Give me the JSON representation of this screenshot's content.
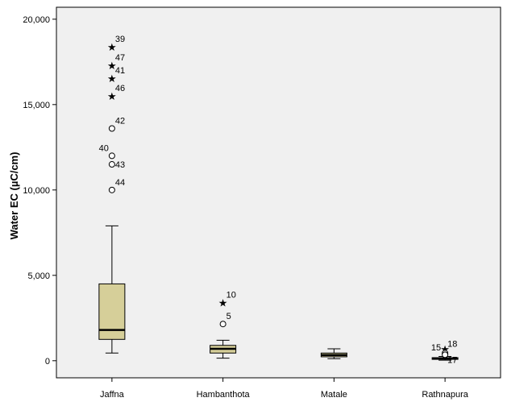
{
  "chart_data": {
    "type": "boxplot",
    "ylabel": "Water EC (µC/cm)",
    "xlabel": "",
    "ylim": [
      -1000,
      20700
    ],
    "yticks": [
      0,
      5000,
      10000,
      15000,
      20000
    ],
    "ytick_labels": [
      "0",
      "5,000",
      "10,000",
      "15,000",
      "20,000"
    ],
    "box_color": "#d6cf99",
    "grid": false,
    "categories": [
      "Jaffna",
      "Hambanthota",
      "Matale",
      "Rathnapura"
    ],
    "boxes": [
      {
        "category": "Jaffna",
        "whisker_low": 450,
        "q1": 1250,
        "median": 1800,
        "q3": 4500,
        "whisker_high": 7900,
        "outliers": [
          {
            "label": "39",
            "value": 18400,
            "marker": "star"
          },
          {
            "label": "47",
            "value": 17300,
            "marker": "star"
          },
          {
            "label": "41",
            "value": 16550,
            "marker": "star"
          },
          {
            "label": "46",
            "value": 15500,
            "marker": "star"
          },
          {
            "label": "42",
            "value": 13600,
            "marker": "circle"
          },
          {
            "label": "40",
            "value": 12000,
            "marker": "circle"
          },
          {
            "label": "43",
            "value": 11500,
            "marker": "circle"
          },
          {
            "label": "44",
            "value": 10000,
            "marker": "circle"
          }
        ]
      },
      {
        "category": "Hambanthota",
        "whisker_low": 150,
        "q1": 450,
        "median": 700,
        "q3": 900,
        "whisker_high": 1200,
        "outliers": [
          {
            "label": "10",
            "value": 3400,
            "marker": "star"
          },
          {
            "label": "5",
            "value": 2150,
            "marker": "circle"
          }
        ]
      },
      {
        "category": "Matale",
        "whisker_low": 120,
        "q1": 230,
        "median": 330,
        "q3": 450,
        "whisker_high": 700,
        "outliers": []
      },
      {
        "category": "Rathnapura",
        "whisker_low": 30,
        "q1": 80,
        "median": 120,
        "q3": 180,
        "whisker_high": 250,
        "outliers": [
          {
            "label": "15",
            "value": 700,
            "marker": "star"
          },
          {
            "label": "18",
            "value": 450,
            "marker": "circle"
          },
          {
            "label": "17",
            "value": 350,
            "marker": "circle"
          }
        ]
      }
    ]
  }
}
